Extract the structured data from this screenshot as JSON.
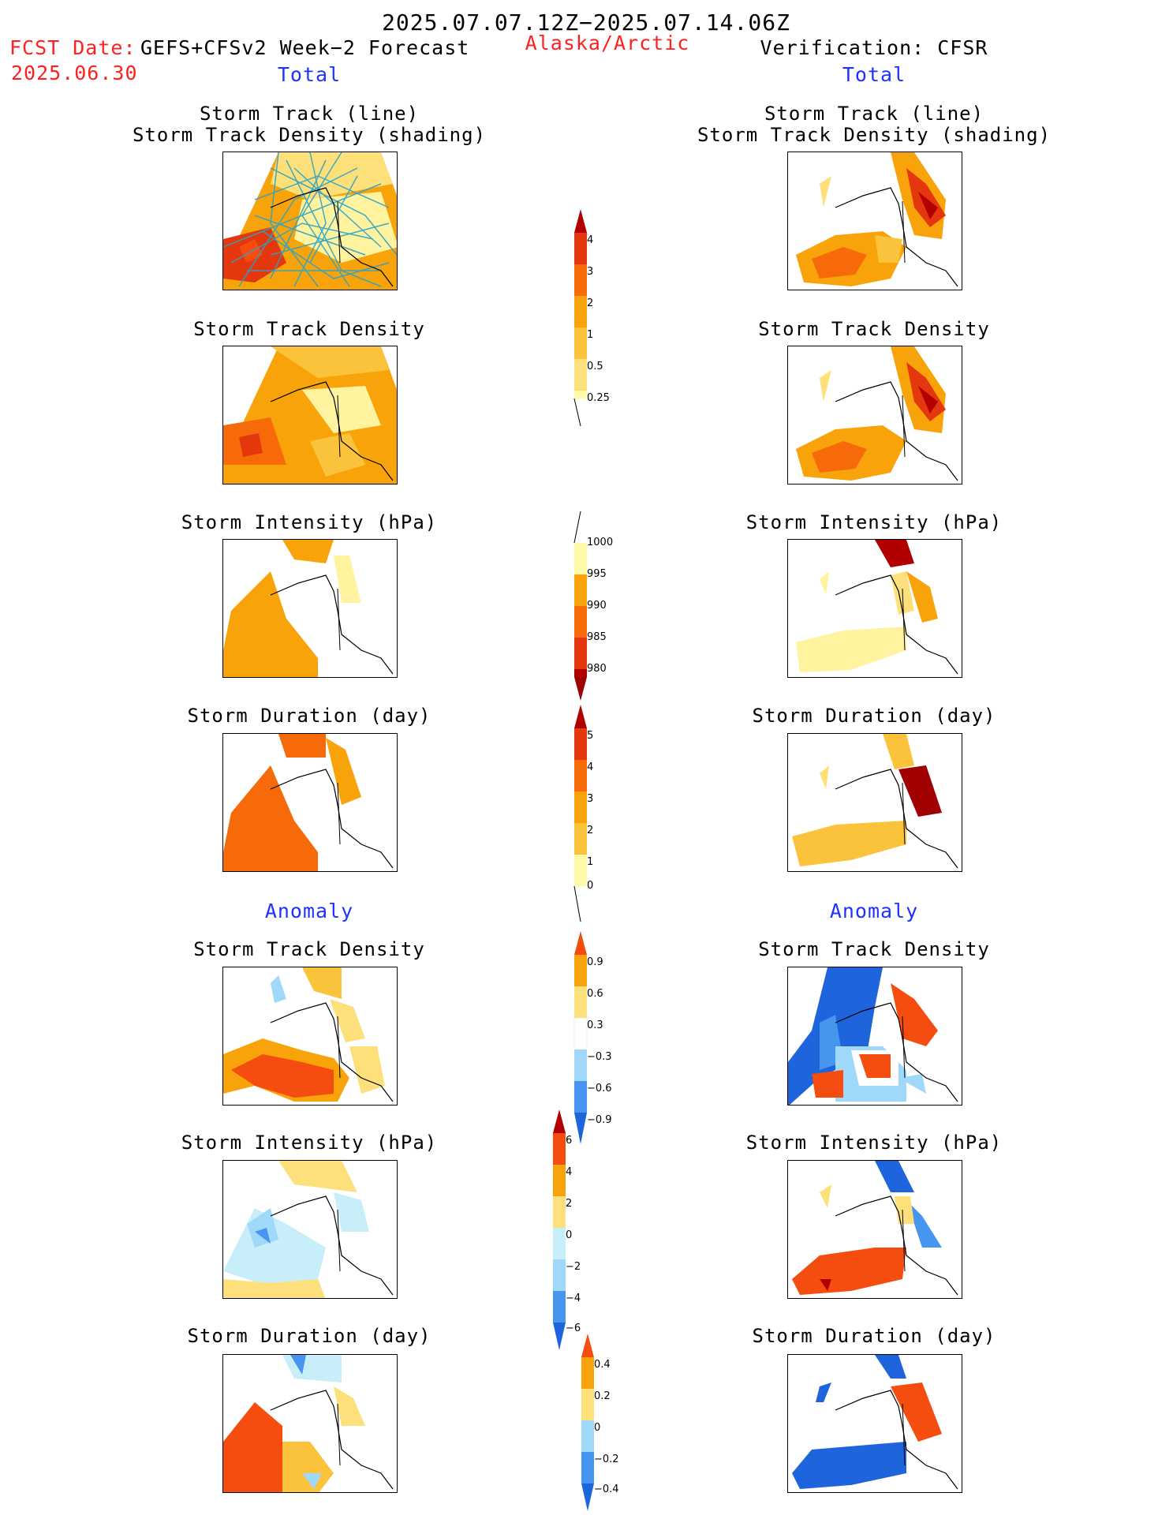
{
  "header": {
    "date_range": "2025.07.07.12Z−2025.07.14.06Z",
    "fcst_date_label": "FCST Date:",
    "forecast_system": "GEFS+CFSv2 Week−2 Forecast",
    "fcst_date": "2025.06.30",
    "region": "Alaska/Arctic",
    "verification": "Verification: CFSR"
  },
  "sections": {
    "total": "Total",
    "anomaly": "Anomaly"
  },
  "panel_titles": {
    "track_line": "Storm Track (line)",
    "track_shading": "Storm Track Density (shading)",
    "track_density": "Storm Track Density",
    "intensity": "Storm Intensity (hPa)",
    "duration": "Storm Duration (day)"
  },
  "colorbars": {
    "total_density": {
      "colors": [
        "#fff9a8",
        "#fde07a",
        "#fbc33c",
        "#f9a30a",
        "#f66a0a",
        "#e4370e",
        "#b20000"
      ],
      "ticks": [
        "4",
        "3",
        "2",
        "1",
        "0.5",
        "0.25"
      ]
    },
    "total_intensity": {
      "colors": [
        "#b20000",
        "#e4370e",
        "#f66a0a",
        "#f9a30a",
        "#fff9a8"
      ],
      "ticks": [
        "1000",
        "995",
        "990",
        "985",
        "980"
      ]
    },
    "total_duration": {
      "colors": [
        "#fff9a8",
        "#fde07a",
        "#fbc33c",
        "#f9a30a",
        "#f66a0a",
        "#e4370e",
        "#b20000"
      ],
      "ticks": [
        "5",
        "4",
        "3",
        "2",
        "1",
        "0"
      ]
    },
    "anom_density": {
      "colors": [
        "#1e64dc",
        "#4696f0",
        "#9fd8f8",
        "#ffffff",
        "#fde07a",
        "#f9a30a",
        "#f54d0f"
      ],
      "ticks": [
        "0.9",
        "0.6",
        "0.3",
        "−0.3",
        "−0.6",
        "−0.9"
      ]
    },
    "anom_intensity": {
      "colors": [
        "#1e64dc",
        "#4696f0",
        "#9fd8f8",
        "#c8eefa",
        "#fde07a",
        "#f9a30a",
        "#f54d0f",
        "#b20000"
      ],
      "ticks": [
        "6",
        "4",
        "2",
        "0",
        "−2",
        "−4",
        "−6"
      ]
    },
    "anom_duration": {
      "colors": [
        "#1e64dc",
        "#4696f0",
        "#9fd8f8",
        "#fde07a",
        "#f9a30a",
        "#f54d0f"
      ],
      "ticks": [
        "0.4",
        "0.2",
        "0",
        "−0.2",
        "−0.4"
      ]
    }
  },
  "colors": {
    "title_red": "#ff2020",
    "section_blue": "#1e32ff",
    "storm_track_line": "#29a3c8"
  }
}
